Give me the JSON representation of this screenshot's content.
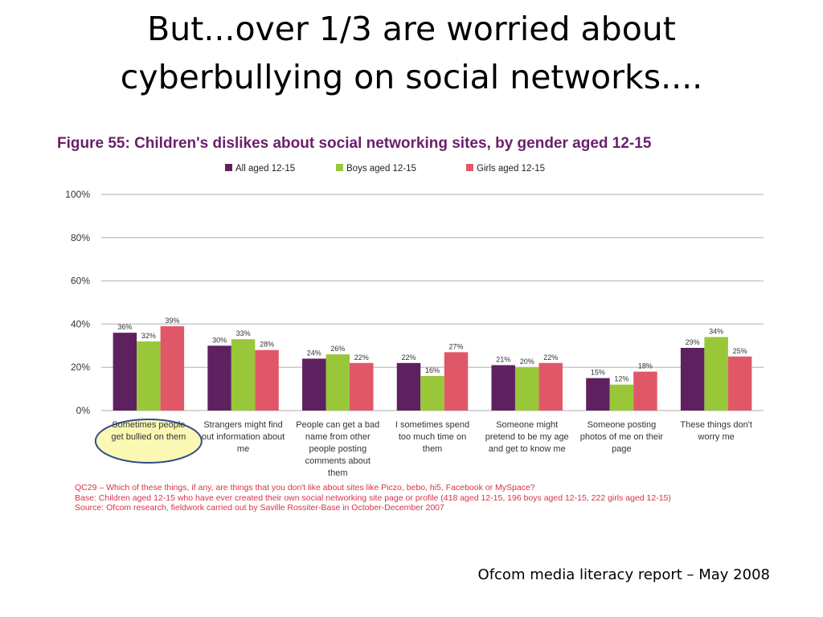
{
  "slide": {
    "title_line1": "But...over 1/3 are worried about",
    "title_line2": "cyberbullying on social networks....",
    "credit": "Ofcom media literacy report – May 2008"
  },
  "notes": [
    "QC29 – Which of these things, if any, are things that you don't like about sites like Piczo, bebo, hi5, Facebook or MySpace?",
    "Base: Children aged 12-15 who have ever created their own social networking site page or profile (418 aged 12-15, 196 boys aged 12-15, 222 girls aged 12-15)",
    "Source: Ofcom research, fieldwork carried out by Saville Rossiter-Base in October-December 2007"
  ],
  "chart_data": {
    "type": "bar",
    "title": "Figure 55: Children's dislikes about social networking sites, by gender aged 12-15",
    "categories": [
      [
        "Sometimes people",
        "get bullied on them"
      ],
      [
        "Strangers might find",
        "out information about",
        "me"
      ],
      [
        "People can get a bad",
        "name from other",
        "people posting",
        "comments about",
        "them"
      ],
      [
        "I sometimes spend",
        "too much time on",
        "them"
      ],
      [
        "Someone might",
        "pretend to be my age",
        "and get to know me"
      ],
      [
        "Someone posting",
        "photos of me on their",
        "page"
      ],
      [
        "These things don't",
        "worry me"
      ]
    ],
    "series": [
      {
        "name": "All aged 12-15",
        "color": "#5e2160",
        "values": [
          36,
          30,
          24,
          22,
          21,
          15,
          29
        ]
      },
      {
        "name": "Boys aged 12-15",
        "color": "#98c83a",
        "values": [
          32,
          33,
          26,
          16,
          20,
          12,
          34
        ]
      },
      {
        "name": "Girls aged 12-15",
        "color": "#e05868",
        "values": [
          39,
          28,
          22,
          27,
          22,
          18,
          25
        ]
      }
    ],
    "ylim": [
      0,
      100
    ],
    "yticks": [
      "0%",
      "20%",
      "40%",
      "60%",
      "80%",
      "100%"
    ],
    "value_suffix": "%",
    "grid": true,
    "legend_position": "top",
    "highlighted_category": 0,
    "highlight_fill": "#fbf8b4",
    "highlight_stroke": "#2f4e8c",
    "title_color": "#6a1f6c"
  }
}
